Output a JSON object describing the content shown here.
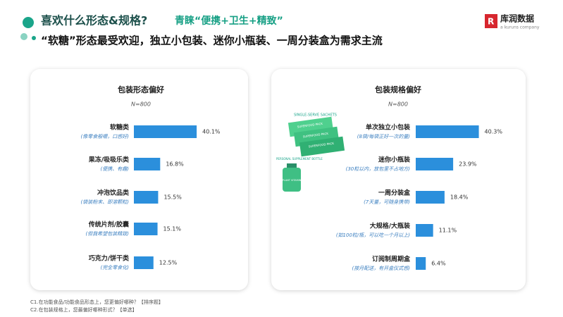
{
  "header": {
    "title": "喜欢什么形态&规格?",
    "highlight": "青睐“便携+卫生+精致”",
    "subtitle": "“软糖”形态最受欢迎，独立小包装、迷你小瓶装、一周分装盒为需求主流",
    "logo": "库润数据",
    "logo_tagline": "a kuruns company"
  },
  "illustration": {
    "sachets_label": "SINGLE-SERVE SACHETS",
    "packs": [
      "SUPERFOOD PACK",
      "SUPERFOOD PACK",
      "SUPERFOOD PACK"
    ],
    "bottle_label": "PERSONAL SUPPLEMENT BOTTLE",
    "bottle_text": "PLANT VITAMIN"
  },
  "chart_data": [
    {
      "type": "bar",
      "orientation": "horizontal",
      "title": "包装形态偏好",
      "subtitle": "N=800",
      "categories": [
        "软糖类",
        "果冻/吸吸乐类",
        "冲泡饮品类",
        "传统片剂/胶囊",
        "巧克力/饼干类"
      ],
      "category_notes": [
        "(像零食般嚼，口感好)",
        "(便携、有趣)",
        "(袋装粉末、即溶颗粒)",
        "(但我希望包装精致)",
        "(完全零食化)"
      ],
      "values": [
        40.1,
        16.8,
        15.5,
        15.1,
        12.5
      ],
      "value_labels": [
        "40.1%",
        "16.8%",
        "15.5%",
        "15.1%",
        "12.5%"
      ],
      "color": "#2b8fdc",
      "xlim": [
        0,
        45
      ]
    },
    {
      "type": "bar",
      "orientation": "horizontal",
      "title": "包装规格偏好",
      "subtitle": "N=800",
      "categories": [
        "单次独立小包装",
        "迷你小瓶装",
        "一周分装盒",
        "大规格/大瓶装",
        "订阅制周期盒"
      ],
      "category_notes": [
        "(8袋/每袋正好一次的量)",
        "(30粒以内，放包里不占地方)",
        "(7天量，可随身携带)",
        "(如100粒/瓶，可以吃一个月以上)",
        "(按月配送，有开盒仪式感)"
      ],
      "values": [
        40.3,
        23.9,
        18.4,
        11.1,
        6.4
      ],
      "value_labels": [
        "40.3%",
        "23.9%",
        "18.4%",
        "11.1%",
        "6.4%"
      ],
      "color": "#2b8fdc",
      "xlim": [
        0,
        45
      ]
    }
  ],
  "footnotes": [
    "C1.在功能食品/功能食品形态上，您更偏好哪种？【排序题】",
    "C2.在包装规格上，您最偏好哪种形式？【单选】"
  ]
}
